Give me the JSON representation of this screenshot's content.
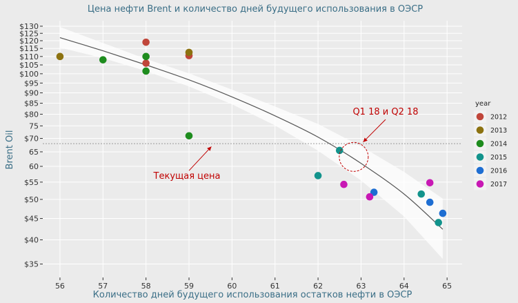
{
  "chart_data": {
    "type": "scatter",
    "title": "Цена нефти Brent и количество дней будущего использования в ОЭСР",
    "xlabel": "Количество дней будущего использования остатков нефти в ОЭСР",
    "ylabel": "Brent Oil",
    "xlim": [
      55.6,
      65.35
    ],
    "ylim": [
      32.5,
      134
    ],
    "y_scale": "log",
    "x_ticks": [
      56,
      57,
      58,
      59,
      60,
      61,
      62,
      63,
      64,
      65
    ],
    "x_tick_labels": [
      "56",
      "57",
      "58",
      "59",
      "60",
      "61",
      "62",
      "63",
      "64",
      "65"
    ],
    "y_ticks": [
      35,
      40,
      45,
      50,
      55,
      60,
      65,
      70,
      75,
      80,
      85,
      90,
      95,
      100,
      105,
      110,
      115,
      120,
      125,
      130
    ],
    "y_tick_labels": [
      "$35",
      "$40",
      "$45",
      "$50",
      "$55",
      "60",
      "65",
      "$70",
      "75",
      "$80",
      "$85",
      "$90",
      "$95",
      "$100",
      "$105",
      "$110",
      "$115",
      "$120",
      "$125",
      "$130"
    ],
    "grid": true,
    "legend": {
      "title": "year",
      "position": "right",
      "entries": [
        {
          "label": "2012",
          "color": "#c0463a"
        },
        {
          "label": "2013",
          "color": "#8c7210"
        },
        {
          "label": "2014",
          "color": "#1e8c1e"
        },
        {
          "label": "2015",
          "color": "#12938c"
        },
        {
          "label": "2016",
          "color": "#1e6ed2"
        },
        {
          "label": "2017",
          "color": "#c818b4"
        }
      ]
    },
    "series": [
      {
        "name": "2012",
        "color": "#c0463a",
        "x": [
          58,
          58,
          59
        ],
        "y": [
          119,
          106,
          110.5
        ]
      },
      {
        "name": "2013",
        "color": "#8c7210",
        "x": [
          56,
          59
        ],
        "y": [
          110,
          112.5
        ]
      },
      {
        "name": "2014",
        "color": "#1e8c1e",
        "x": [
          57,
          58,
          58,
          59
        ],
        "y": [
          108,
          110,
          101.5,
          71
        ]
      },
      {
        "name": "2015",
        "color": "#12938c",
        "x": [
          62,
          62.5,
          64.4,
          64.8
        ],
        "y": [
          57,
          65.5,
          51.5,
          44
        ]
      },
      {
        "name": "2016",
        "color": "#1e6ed2",
        "x": [
          63.3,
          64.6,
          64.9
        ],
        "y": [
          52,
          49.2,
          46.3
        ]
      },
      {
        "name": "2017",
        "color": "#c818b4",
        "x": [
          62.6,
          63.2,
          64.6
        ],
        "y": [
          54.3,
          50.7,
          54.8
        ]
      }
    ],
    "trend": {
      "x": [
        56,
        57,
        58,
        59,
        60,
        61,
        62,
        63,
        64,
        64.9
      ],
      "y": [
        122,
        113.5,
        105,
        96.7,
        88,
        79.3,
        70.5,
        61,
        51.5,
        42.4
      ],
      "lower": [
        115.5,
        109,
        101.5,
        93.2,
        84.5,
        75.2,
        65.4,
        55.5,
        45.5,
        36
      ],
      "upper": [
        129.5,
        118.5,
        108.5,
        100.2,
        91.6,
        83.5,
        75.8,
        67,
        58.2,
        50.2
      ]
    },
    "current_price_line": {
      "y": 68
    },
    "annotations": [
      {
        "id": "current",
        "text": "Текущая цена",
        "arrow_from": {
          "x": 59.0,
          "y": 58.6
        },
        "arrow_to": {
          "x": 59.52,
          "y": 66.9
        }
      },
      {
        "id": "q1q2",
        "text": "Q1 18 и Q2 18",
        "arrow_from": {
          "x": 63.57,
          "y": 77.7
        },
        "arrow_to": {
          "x": 63.05,
          "y": 68.6
        }
      },
      {
        "id": "circle",
        "text": "",
        "center": {
          "x": 62.83,
          "y": 63.2
        }
      }
    ]
  }
}
